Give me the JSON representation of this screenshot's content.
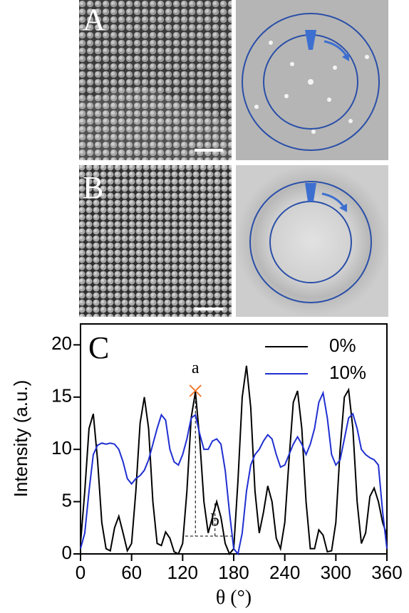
{
  "chart_data": {
    "type": "line",
    "panels": [
      "A",
      "B"
    ],
    "panel_label": "C",
    "ylabel": "Intensity (a.u.)",
    "xlabel": "θ (°)",
    "annotations": [
      "a",
      "b"
    ],
    "x": [
      0,
      5,
      10,
      15,
      20,
      25,
      30,
      35,
      40,
      45,
      50,
      55,
      60,
      65,
      70,
      75,
      80,
      85,
      90,
      95,
      100,
      105,
      110,
      115,
      120,
      125,
      130,
      135,
      140,
      145,
      150,
      155,
      160,
      165,
      170,
      175,
      180,
      185,
      190,
      195,
      200,
      205,
      210,
      215,
      220,
      225,
      230,
      235,
      240,
      245,
      250,
      255,
      260,
      265,
      270,
      275,
      280,
      285,
      290,
      295,
      300,
      305,
      310,
      315,
      320,
      325,
      330,
      335,
      340,
      345,
      350,
      355,
      360
    ],
    "series": [
      {
        "name": "0%",
        "color": "#000000",
        "values": [
          1.0,
          6,
          12,
          13.4,
          9,
          3,
          0.5,
          0.3,
          2.5,
          3.6,
          2,
          0.3,
          1,
          6,
          12.5,
          15,
          12,
          5,
          1,
          0.8,
          2.1,
          1.5,
          0.2,
          0,
          1,
          6,
          13,
          15.5,
          11,
          5,
          2,
          3.5,
          5,
          3.5,
          1,
          0,
          0.5,
          7,
          15,
          18,
          14,
          6,
          2,
          4,
          6.5,
          5,
          1.5,
          0.5,
          3,
          9,
          14.5,
          15.6,
          12,
          5,
          0.5,
          0.5,
          2.3,
          1.8,
          0.2,
          0.3,
          3,
          10,
          15,
          15.7,
          12,
          5,
          1,
          2,
          5.5,
          6.3,
          5,
          3,
          1.8
        ]
      },
      {
        "name": "10%",
        "color": "#1f2fd0",
        "values": [
          0.5,
          2,
          6,
          9.5,
          10.4,
          10.6,
          10.5,
          10.6,
          10.5,
          10,
          8.8,
          7.2,
          6.7,
          7.2,
          7.5,
          8,
          9,
          10.5,
          12,
          13.3,
          12.8,
          10,
          8.8,
          8.5,
          9.5,
          11,
          13,
          13.3,
          11.5,
          10,
          10,
          10.8,
          11,
          10.5,
          8,
          4,
          0.5,
          0,
          2,
          6,
          8.5,
          9.5,
          10,
          10.8,
          11.4,
          11,
          9.5,
          8.3,
          8.5,
          9.5,
          10.5,
          11.2,
          10.5,
          9.5,
          10.5,
          12,
          14.5,
          15.4,
          13,
          9.5,
          8.5,
          9,
          11,
          13,
          13.4,
          12,
          10,
          9.5,
          9.2,
          9,
          8.5,
          4,
          0.5
        ]
      }
    ],
    "xlim": [
      0,
      360
    ],
    "xticks": [
      0,
      60,
      120,
      180,
      240,
      300,
      360
    ],
    "ylim": [
      0,
      22
    ],
    "yticks": [
      0,
      5,
      10,
      15,
      20
    ],
    "grid": false,
    "legend": "upper right"
  }
}
